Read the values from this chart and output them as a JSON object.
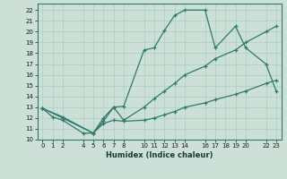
{
  "xlabel": "Humidex (Indice chaleur)",
  "bg_color": "#cce0d8",
  "line_color": "#2d7a6e",
  "grid_color": "#aacfc5",
  "xlim": [
    -0.5,
    23.5
  ],
  "ylim": [
    10,
    22.6
  ],
  "yticks": [
    10,
    11,
    12,
    13,
    14,
    15,
    16,
    17,
    18,
    19,
    20,
    21,
    22
  ],
  "xticks": [
    0,
    1,
    2,
    4,
    5,
    6,
    7,
    8,
    10,
    11,
    12,
    13,
    14,
    16,
    17,
    18,
    19,
    20,
    22,
    23
  ],
  "curve1_x": [
    0,
    1,
    2,
    4,
    5,
    6,
    7,
    8,
    10,
    11,
    12,
    13,
    14,
    16,
    17,
    19,
    20,
    22,
    23
  ],
  "curve1_y": [
    12.9,
    12.1,
    11.8,
    10.6,
    10.6,
    12.0,
    13.0,
    13.1,
    18.3,
    18.5,
    20.1,
    21.5,
    22.0,
    22.0,
    18.5,
    20.5,
    18.5,
    17.0,
    14.5
  ],
  "curve2_x": [
    0,
    2,
    5,
    6,
    7,
    8,
    10,
    11,
    12,
    13,
    14,
    16,
    17,
    19,
    20,
    22,
    23
  ],
  "curve2_y": [
    12.9,
    12.1,
    10.6,
    11.7,
    13.0,
    11.8,
    13.0,
    13.8,
    14.5,
    15.2,
    16.0,
    16.8,
    17.5,
    18.3,
    19.0,
    20.0,
    20.5
  ],
  "curve3_x": [
    0,
    2,
    5,
    6,
    7,
    8,
    10,
    11,
    12,
    13,
    14,
    16,
    17,
    19,
    20,
    22,
    23
  ],
  "curve3_y": [
    12.9,
    12.0,
    10.6,
    11.5,
    11.8,
    11.7,
    11.8,
    12.0,
    12.3,
    12.6,
    13.0,
    13.4,
    13.7,
    14.2,
    14.5,
    15.2,
    15.5
  ]
}
